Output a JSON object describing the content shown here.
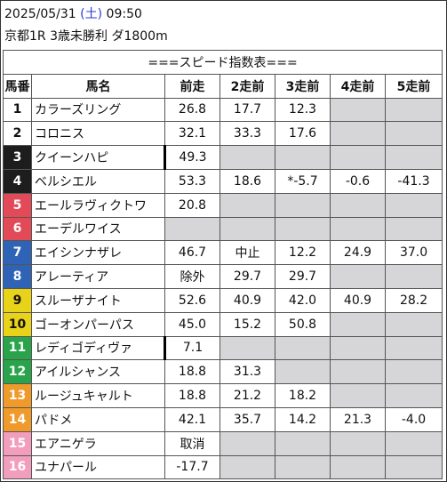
{
  "header": {
    "date": "2025/05/31",
    "dow_open": "(",
    "dow": "土",
    "dow_close": ")",
    "time": "09:50",
    "race": "京都1R 3歳未勝利 ダ1800m"
  },
  "table": {
    "title": "===スピード指数表===",
    "columns": [
      "馬番",
      "馬名",
      "前走",
      "2走前",
      "3走前",
      "4走前",
      "5走前"
    ],
    "rows": [
      {
        "num": "1",
        "name": "カラーズリング",
        "v": [
          "26.8",
          "17.7",
          "12.3",
          "",
          ""
        ],
        "gray": [
          false,
          false,
          false,
          true,
          true
        ],
        "cut": false
      },
      {
        "num": "2",
        "name": "コロニス",
        "v": [
          "32.1",
          "33.3",
          "17.6",
          "",
          ""
        ],
        "gray": [
          false,
          false,
          false,
          true,
          true
        ],
        "cut": false
      },
      {
        "num": "3",
        "name": "クイーンハピ",
        "v": [
          "49.3",
          "",
          "",
          "",
          ""
        ],
        "gray": [
          false,
          true,
          true,
          true,
          true
        ],
        "cut": true
      },
      {
        "num": "4",
        "name": "ベルシエル",
        "v": [
          "53.3",
          "18.6",
          "*-5.7",
          "-0.6",
          "-41.3"
        ],
        "gray": [
          false,
          false,
          false,
          false,
          false
        ],
        "cut": false
      },
      {
        "num": "5",
        "name": "エールラヴィクトワ",
        "v": [
          "20.8",
          "",
          "",
          "",
          ""
        ],
        "gray": [
          false,
          true,
          true,
          true,
          true
        ],
        "cut": false
      },
      {
        "num": "6",
        "name": "エーデルワイス",
        "v": [
          "",
          "",
          "",
          "",
          ""
        ],
        "gray": [
          true,
          true,
          true,
          true,
          true
        ],
        "cut": false
      },
      {
        "num": "7",
        "name": "エイシンナザレ",
        "v": [
          "46.7",
          "中止",
          "12.2",
          "24.9",
          "37.0"
        ],
        "gray": [
          false,
          false,
          false,
          false,
          false
        ],
        "cut": false
      },
      {
        "num": "8",
        "name": "アレーティア",
        "v": [
          "除外",
          "29.7",
          "29.7",
          "",
          ""
        ],
        "gray": [
          false,
          false,
          false,
          true,
          true
        ],
        "cut": false
      },
      {
        "num": "9",
        "name": "スルーザナイト",
        "v": [
          "52.6",
          "40.9",
          "42.0",
          "40.9",
          "28.2"
        ],
        "gray": [
          false,
          false,
          false,
          false,
          false
        ],
        "cut": false
      },
      {
        "num": "10",
        "name": "ゴーオンパーパス",
        "v": [
          "45.0",
          "15.2",
          "50.8",
          "",
          ""
        ],
        "gray": [
          false,
          false,
          false,
          true,
          true
        ],
        "cut": false
      },
      {
        "num": "11",
        "name": "レディゴディヴァ",
        "v": [
          "7.1",
          "",
          "",
          "",
          ""
        ],
        "gray": [
          false,
          true,
          true,
          true,
          true
        ],
        "cut": true
      },
      {
        "num": "12",
        "name": "アイルシャンス",
        "v": [
          "18.8",
          "31.3",
          "",
          "",
          ""
        ],
        "gray": [
          false,
          false,
          true,
          true,
          true
        ],
        "cut": false
      },
      {
        "num": "13",
        "name": "ルージュキャルト",
        "v": [
          "18.8",
          "21.2",
          "18.2",
          "",
          ""
        ],
        "gray": [
          false,
          false,
          false,
          true,
          true
        ],
        "cut": false
      },
      {
        "num": "14",
        "name": "パドメ",
        "v": [
          "42.1",
          "35.7",
          "14.2",
          "21.3",
          "-4.0"
        ],
        "gray": [
          false,
          false,
          false,
          false,
          false
        ],
        "cut": false
      },
      {
        "num": "15",
        "name": "エアニゲラ",
        "v": [
          "取消",
          "",
          "",
          "",
          ""
        ],
        "gray": [
          false,
          true,
          true,
          true,
          true
        ],
        "cut": false
      },
      {
        "num": "16",
        "name": "ユナパール",
        "v": [
          "-17.7",
          "",
          "",
          "",
          ""
        ],
        "gray": [
          false,
          true,
          true,
          true,
          true
        ],
        "cut": false
      }
    ]
  }
}
